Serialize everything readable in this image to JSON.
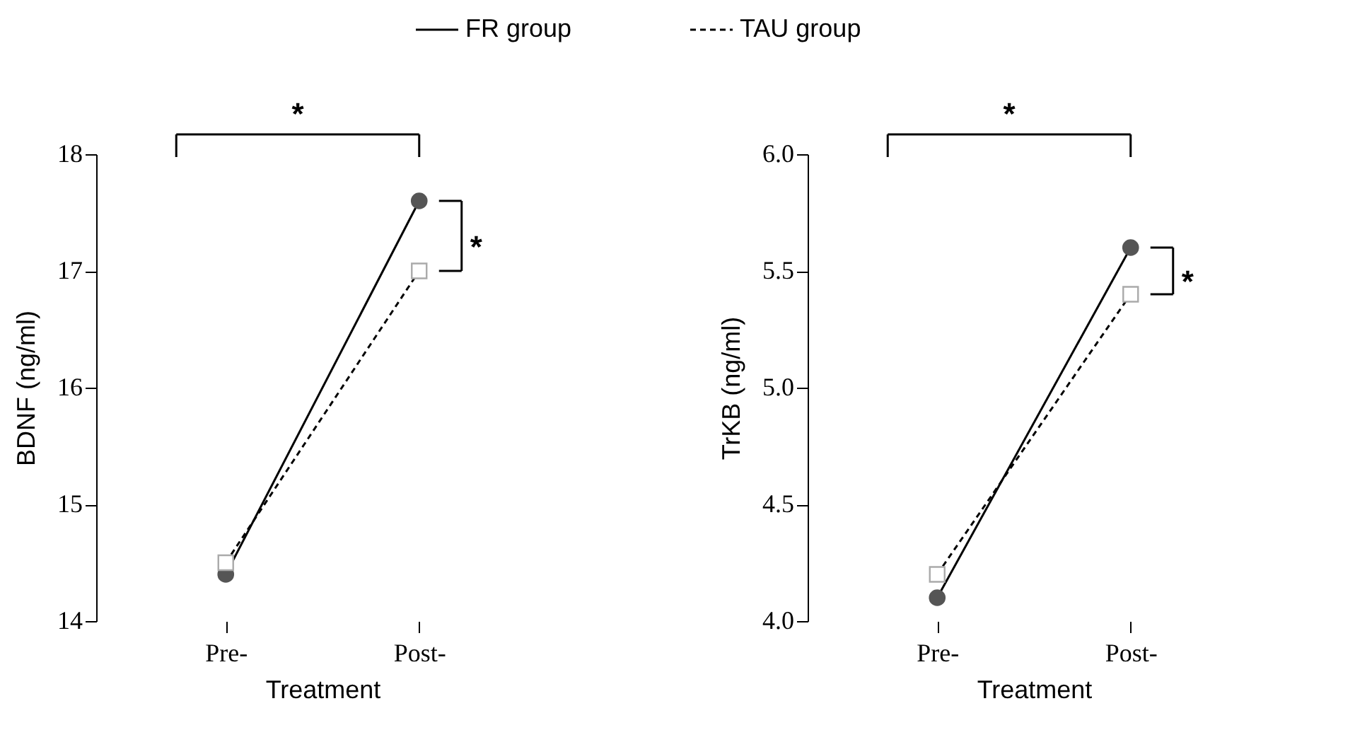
{
  "chart_data": [
    {
      "type": "line",
      "categories": [
        "Pre-",
        "Post-"
      ],
      "xlabel": "Treatment",
      "ylabel": "BDNF (ng/ml)",
      "ylim": [
        14,
        18
      ],
      "yticks": [
        {
          "value": 14,
          "label": "14"
        },
        {
          "value": 15,
          "label": "15"
        },
        {
          "value": 16,
          "label": "16"
        },
        {
          "value": 17,
          "label": "17"
        },
        {
          "value": 18,
          "label": "18"
        }
      ],
      "legend": "top",
      "annotations": [
        "*",
        "*"
      ],
      "series": [
        {
          "name": "FR   group",
          "color": "#555555",
          "marker": "circle",
          "line_style": "solid",
          "values": [
            14.4,
            17.6
          ]
        },
        {
          "name": "TAU group",
          "color": "#aaaaaa",
          "marker": "square",
          "line_style": "dashed",
          "values": [
            14.5,
            17.0
          ]
        }
      ]
    },
    {
      "type": "line",
      "categories": [
        "Pre-",
        "Post-"
      ],
      "xlabel": "Treatment",
      "ylabel": "TrKB (ng/ml)",
      "ylim": [
        4,
        6
      ],
      "yticks": [
        {
          "value": 4,
          "label": "4.0"
        },
        {
          "value": 4.5,
          "label": "4.5"
        },
        {
          "value": 5,
          "label": "5.0"
        },
        {
          "value": 5.5,
          "label": "5.5"
        },
        {
          "value": 6,
          "label": "6.0"
        }
      ],
      "annotations": [
        "*",
        "*"
      ],
      "series": [
        {
          "name": "FR   group",
          "color": "#555555",
          "marker": "circle",
          "line_style": "solid",
          "values": [
            4.1,
            5.6
          ]
        },
        {
          "name": "TAU group",
          "color": "#aaaaaa",
          "marker": "square",
          "line_style": "dashed",
          "values": [
            4.2,
            5.4
          ]
        }
      ]
    }
  ]
}
